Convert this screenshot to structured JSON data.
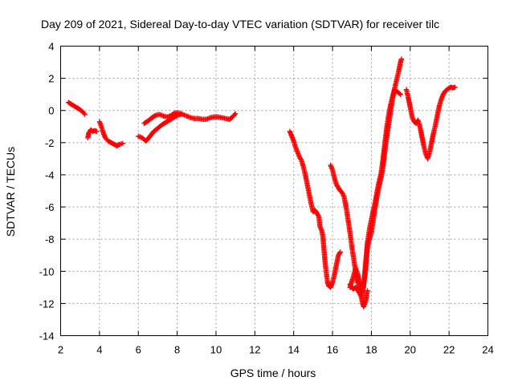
{
  "chart_data": {
    "type": "scatter",
    "title": "Day 209 of 2021, Sidereal Day-to-day VTEC variation (SDTVAR) for receiver tilc",
    "xlabel": "GPS time / hours",
    "ylabel": "SDTVAR / TECUs",
    "xlim": [
      2,
      24
    ],
    "ylim": [
      -14,
      4
    ],
    "xticks": [
      2,
      4,
      6,
      8,
      10,
      12,
      14,
      16,
      18,
      20,
      22,
      24
    ],
    "yticks": [
      -14,
      -12,
      -10,
      -8,
      -6,
      -4,
      -2,
      0,
      2,
      4
    ],
    "grid": true,
    "marker": "+",
    "series": [
      {
        "color": "#ff0000",
        "segments": [
          [
            [
              2.4,
              0.5
            ],
            [
              2.6,
              0.35
            ],
            [
              2.8,
              0.2
            ],
            [
              3.0,
              0.05
            ],
            [
              3.15,
              -0.1
            ],
            [
              3.25,
              -0.25
            ]
          ],
          [
            [
              3.4,
              -1.7
            ],
            [
              3.45,
              -1.4
            ],
            [
              3.55,
              -1.2
            ],
            [
              3.65,
              -1.3
            ],
            [
              3.75,
              -1.25
            ],
            [
              3.85,
              -1.3
            ]
          ],
          [
            [
              4.0,
              -0.7
            ],
            [
              4.1,
              -1.0
            ],
            [
              4.2,
              -1.4
            ],
            [
              4.3,
              -1.7
            ],
            [
              4.45,
              -1.9
            ],
            [
              4.6,
              -2.0
            ],
            [
              4.75,
              -2.1
            ],
            [
              4.9,
              -2.2
            ],
            [
              5.05,
              -2.1
            ],
            [
              5.2,
              -2.05
            ]
          ],
          [
            [
              6.0,
              -1.6
            ],
            [
              6.2,
              -1.7
            ],
            [
              6.4,
              -1.9
            ],
            [
              6.6,
              -1.6
            ],
            [
              6.8,
              -1.3
            ],
            [
              7.0,
              -1.1
            ],
            [
              7.2,
              -0.9
            ],
            [
              7.4,
              -0.75
            ],
            [
              7.6,
              -0.6
            ],
            [
              7.8,
              -0.45
            ],
            [
              8.0,
              -0.3
            ],
            [
              8.2,
              -0.25
            ]
          ],
          [
            [
              6.3,
              -0.8
            ],
            [
              6.5,
              -0.65
            ],
            [
              6.7,
              -0.45
            ],
            [
              6.9,
              -0.3
            ],
            [
              7.1,
              -0.25
            ],
            [
              7.3,
              -0.35
            ],
            [
              7.5,
              -0.4
            ],
            [
              7.7,
              -0.3
            ],
            [
              7.9,
              -0.15
            ],
            [
              8.1,
              -0.15
            ],
            [
              8.3,
              -0.25
            ],
            [
              8.5,
              -0.35
            ],
            [
              8.7,
              -0.45
            ],
            [
              8.9,
              -0.5
            ],
            [
              9.1,
              -0.5
            ],
            [
              9.3,
              -0.55
            ],
            [
              9.5,
              -0.55
            ],
            [
              9.7,
              -0.45
            ],
            [
              9.9,
              -0.4
            ],
            [
              10.1,
              -0.4
            ],
            [
              10.3,
              -0.45
            ],
            [
              10.5,
              -0.5
            ],
            [
              10.7,
              -0.55
            ],
            [
              10.85,
              -0.4
            ],
            [
              11.0,
              -0.2
            ]
          ],
          [
            [
              13.8,
              -1.3
            ],
            [
              13.9,
              -1.6
            ],
            [
              14.0,
              -1.9
            ],
            [
              14.1,
              -2.3
            ],
            [
              14.2,
              -2.6
            ],
            [
              14.3,
              -2.9
            ],
            [
              14.4,
              -3.1
            ],
            [
              14.5,
              -3.5
            ],
            [
              14.6,
              -4.0
            ],
            [
              14.7,
              -4.6
            ],
            [
              14.8,
              -5.2
            ],
            [
              14.9,
              -5.8
            ],
            [
              15.0,
              -6.3
            ],
            [
              15.1,
              -6.2
            ],
            [
              15.2,
              -6.4
            ],
            [
              15.3,
              -6.6
            ],
            [
              15.35,
              -7.2
            ],
            [
              15.45,
              -7.5
            ],
            [
              15.5,
              -7.8
            ],
            [
              15.55,
              -8.5
            ],
            [
              15.6,
              -9.2
            ],
            [
              15.65,
              -9.8
            ],
            [
              15.7,
              -10.3
            ],
            [
              15.75,
              -10.7
            ],
            [
              15.8,
              -10.9
            ],
            [
              15.9,
              -11.0
            ],
            [
              16.0,
              -10.7
            ],
            [
              16.1,
              -10.2
            ],
            [
              16.2,
              -9.6
            ],
            [
              16.3,
              -9.0
            ],
            [
              16.4,
              -8.8
            ]
          ],
          [
            [
              15.9,
              -3.4
            ],
            [
              16.0,
              -3.7
            ],
            [
              16.1,
              -4.2
            ],
            [
              16.2,
              -4.6
            ],
            [
              16.3,
              -4.8
            ],
            [
              16.4,
              -5.0
            ],
            [
              16.5,
              -5.1
            ],
            [
              16.6,
              -5.4
            ],
            [
              16.7,
              -6.0
            ],
            [
              16.8,
              -6.8
            ],
            [
              16.9,
              -7.6
            ],
            [
              17.0,
              -8.5
            ],
            [
              17.1,
              -9.3
            ],
            [
              17.2,
              -10.1
            ],
            [
              17.3,
              -10.7
            ],
            [
              17.4,
              -11.2
            ],
            [
              17.5,
              -11.7
            ],
            [
              17.55,
              -12.0
            ],
            [
              17.6,
              -12.2
            ],
            [
              17.7,
              -11.9
            ],
            [
              17.8,
              -11.2
            ]
          ],
          [
            [
              16.9,
              -11.0
            ],
            [
              17.0,
              -10.6
            ],
            [
              17.1,
              -10.2
            ],
            [
              17.2,
              -9.8
            ],
            [
              17.3,
              -10.2
            ],
            [
              17.4,
              -10.8
            ],
            [
              17.5,
              -11.2
            ],
            [
              17.6,
              -10.8
            ],
            [
              17.7,
              -10.0
            ],
            [
              17.75,
              -9.2
            ],
            [
              17.8,
              -8.5
            ],
            [
              17.9,
              -8.0
            ],
            [
              18.0,
              -7.6
            ],
            [
              18.1,
              -6.8
            ],
            [
              18.2,
              -6.0
            ],
            [
              18.3,
              -5.3
            ],
            [
              18.4,
              -4.7
            ],
            [
              18.5,
              -4.2
            ],
            [
              18.6,
              -3.5
            ],
            [
              18.7,
              -2.5
            ],
            [
              18.8,
              -1.6
            ],
            [
              18.9,
              -0.8
            ],
            [
              19.0,
              0.0
            ],
            [
              19.1,
              0.8
            ],
            [
              19.2,
              1.4
            ],
            [
              19.3,
              1.9
            ],
            [
              19.4,
              2.4
            ],
            [
              19.5,
              3.0
            ],
            [
              19.55,
              3.2
            ]
          ],
          [
            [
              16.9,
              -10.8
            ],
            [
              17.05,
              -11.1
            ],
            [
              17.2,
              -11.0
            ],
            [
              17.35,
              -11.3
            ],
            [
              17.5,
              -11.6
            ],
            [
              17.6,
              -11.0
            ],
            [
              17.7,
              -9.5
            ],
            [
              17.8,
              -8.2
            ],
            [
              17.9,
              -7.4
            ],
            [
              18.0,
              -6.8
            ],
            [
              18.1,
              -6.2
            ],
            [
              18.2,
              -5.7
            ],
            [
              18.3,
              -5.0
            ],
            [
              18.4,
              -4.4
            ],
            [
              18.5,
              -3.9
            ],
            [
              18.6,
              -3.0
            ],
            [
              18.7,
              -2.0
            ],
            [
              18.8,
              -1.0
            ],
            [
              18.9,
              -0.2
            ],
            [
              19.0,
              0.4
            ],
            [
              19.1,
              0.9
            ],
            [
              19.2,
              1.3
            ],
            [
              19.3,
              1.2
            ],
            [
              19.4,
              1.1
            ],
            [
              19.5,
              1.0
            ]
          ],
          [
            [
              19.8,
              1.3
            ],
            [
              19.9,
              0.8
            ],
            [
              20.0,
              0.2
            ],
            [
              20.1,
              -0.4
            ],
            [
              20.2,
              -0.7
            ],
            [
              20.3,
              -0.8
            ],
            [
              20.4,
              -0.6
            ],
            [
              20.5,
              -1.0
            ],
            [
              20.6,
              -1.6
            ],
            [
              20.7,
              -2.2
            ],
            [
              20.8,
              -2.7
            ],
            [
              20.9,
              -3.0
            ],
            [
              21.0,
              -2.6
            ],
            [
              21.1,
              -2.0
            ],
            [
              21.2,
              -1.4
            ],
            [
              21.3,
              -0.9
            ],
            [
              21.4,
              -0.3
            ],
            [
              21.5,
              0.3
            ],
            [
              21.6,
              0.7
            ],
            [
              21.7,
              1.0
            ],
            [
              21.8,
              1.2
            ],
            [
              21.9,
              1.3
            ],
            [
              22.0,
              1.4
            ],
            [
              22.1,
              1.45
            ],
            [
              22.2,
              1.4
            ],
            [
              22.3,
              1.45
            ]
          ]
        ]
      }
    ]
  }
}
